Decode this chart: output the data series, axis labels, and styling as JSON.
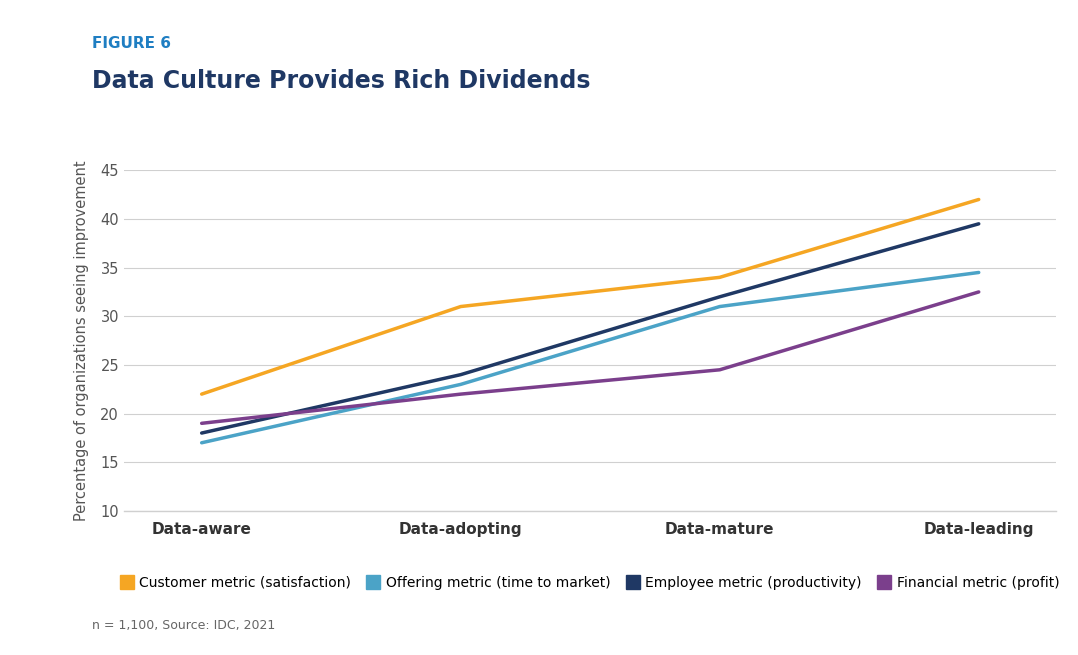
{
  "figure_label": "FIGURE 6",
  "title": "Data Culture Provides Rich Dividends",
  "xlabel_categories": [
    "Data-aware",
    "Data-adopting",
    "Data-mature",
    "Data-leading"
  ],
  "ylabel": "Percentage of organizations seeing improvement",
  "ylim": [
    10,
    45
  ],
  "yticks": [
    10,
    15,
    20,
    25,
    30,
    35,
    40,
    45
  ],
  "source_text": "n = 1,100, Source: IDC, 2021",
  "series": [
    {
      "label": "Customer metric (satisfaction)",
      "color": "#F5A623",
      "values": [
        22,
        31,
        34,
        42
      ]
    },
    {
      "label": "Offering metric (time to market)",
      "color": "#4BA3C7",
      "values": [
        17,
        23,
        31,
        34.5
      ]
    },
    {
      "label": "Employee metric (productivity)",
      "color": "#1F3864",
      "values": [
        18,
        24,
        32,
        39.5
      ]
    },
    {
      "label": "Financial metric (profit)",
      "color": "#7B3F8C",
      "values": [
        19,
        22,
        24.5,
        32.5
      ]
    }
  ],
  "figure_label_color": "#1F7EC2",
  "title_color": "#1F3864",
  "background_color": "#FFFFFF",
  "gridline_color": "#D0D0D0",
  "line_width": 2.5
}
